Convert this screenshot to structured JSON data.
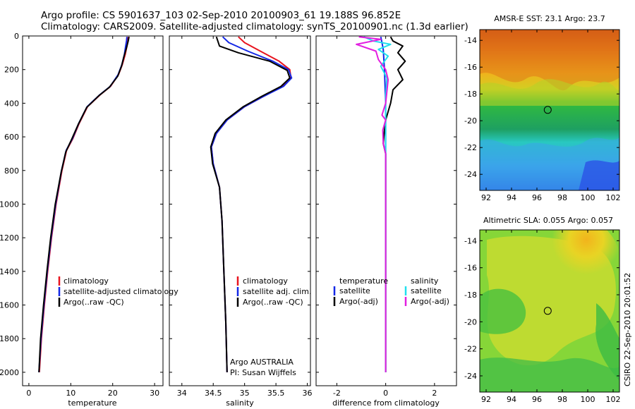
{
  "header": {
    "line1": "Argo profile: CS 5901637_103 02-Sep-2010 20100903_61 19.188S 96.852E",
    "line2": "Climatology: CARS2009. Satellite-adjusted climatology: synTS_20100901.nc (1.3d earlier)"
  },
  "colors": {
    "climatology": "#e8141e",
    "satellite": "#1428e6",
    "argo": "#000000",
    "satellite_salinity": "#20e0ee",
    "argo_salinity": "#e21ee0"
  },
  "chart_data": [
    {
      "type": "line",
      "name": "temperature-profile",
      "xlabel": "temperature",
      "ylabel": "",
      "xlim": [
        -1.5,
        32
      ],
      "ylim": [
        0,
        2080
      ],
      "y_inverted": true,
      "xticks": [
        0,
        10,
        20,
        30
      ],
      "yticks": [
        0,
        200,
        400,
        600,
        800,
        1000,
        1200,
        1400,
        1600,
        1800,
        2000
      ],
      "legend": [
        "climatology",
        "satellite-adjusted climatology",
        "Argo(..raw -QC)"
      ],
      "series": [
        {
          "name": "climatology",
          "color_key": "climatology",
          "points": [
            [
              23.7,
              5
            ],
            [
              23.6,
              30
            ],
            [
              23.4,
              60
            ],
            [
              23.0,
              110
            ],
            [
              22.3,
              170
            ],
            [
              21.4,
              230
            ],
            [
              19.5,
              300
            ],
            [
              17.0,
              350
            ],
            [
              14.0,
              420
            ],
            [
              12.0,
              520
            ],
            [
              10.5,
              610
            ],
            [
              9.0,
              680
            ],
            [
              7.9,
              800
            ],
            [
              6.5,
              1000
            ],
            [
              5.4,
              1200
            ],
            [
              4.5,
              1400
            ],
            [
              3.7,
              1600
            ],
            [
              3.0,
              1800
            ],
            [
              2.5,
              2000
            ]
          ]
        },
        {
          "name": "satellite-adjusted climatology",
          "color_key": "satellite",
          "points": [
            [
              23.4,
              5
            ],
            [
              23.3,
              30
            ],
            [
              23.1,
              60
            ],
            [
              22.8,
              110
            ],
            [
              22.2,
              170
            ],
            [
              21.3,
              230
            ],
            [
              19.4,
              300
            ],
            [
              16.9,
              350
            ],
            [
              13.9,
              420
            ],
            [
              11.9,
              520
            ],
            [
              10.4,
              610
            ],
            [
              8.9,
              680
            ],
            [
              7.8,
              800
            ],
            [
              6.4,
              1000
            ],
            [
              5.3,
              1200
            ],
            [
              4.4,
              1400
            ],
            [
              3.6,
              1600
            ],
            [
              2.9,
              1800
            ],
            [
              2.4,
              2000
            ]
          ]
        },
        {
          "name": "Argo(..raw -QC)",
          "color_key": "argo",
          "points": [
            [
              23.9,
              5
            ],
            [
              23.7,
              30
            ],
            [
              23.3,
              70
            ],
            [
              22.7,
              120
            ],
            [
              22.1,
              180
            ],
            [
              21.2,
              240
            ],
            [
              19.2,
              305
            ],
            [
              16.7,
              355
            ],
            [
              13.8,
              425
            ],
            [
              11.8,
              525
            ],
            [
              10.2,
              615
            ],
            [
              8.8,
              690
            ],
            [
              7.7,
              810
            ],
            [
              6.3,
              1000
            ],
            [
              5.2,
              1200
            ],
            [
              4.3,
              1400
            ],
            [
              3.5,
              1600
            ],
            [
              2.8,
              1800
            ],
            [
              2.4,
              2000
            ]
          ]
        }
      ]
    },
    {
      "type": "line",
      "name": "salinity-profile",
      "xlabel": "salinity",
      "ylabel": "",
      "xlim": [
        33.8,
        36.05
      ],
      "ylim": [
        0,
        2080
      ],
      "y_inverted": true,
      "xticks": [
        34,
        34.5,
        35,
        35.5,
        36
      ],
      "yticks": [
        0,
        200,
        400,
        600,
        800,
        1000,
        1200,
        1400,
        1600,
        1800,
        2000
      ],
      "legend": [
        "climatology",
        "satellite adj. clim.",
        "Argo(..raw -QC)"
      ],
      "annotation": [
        "Argo AUSTRALIA",
        "PI: Susan Wijffels"
      ],
      "series": [
        {
          "name": "climatology",
          "color_key": "climatology",
          "points": [
            [
              34.9,
              5
            ],
            [
              35.0,
              40
            ],
            [
              35.25,
              90
            ],
            [
              35.55,
              150
            ],
            [
              35.72,
              200
            ],
            [
              35.74,
              250
            ],
            [
              35.6,
              300
            ],
            [
              35.3,
              360
            ],
            [
              35.0,
              420
            ],
            [
              34.72,
              500
            ],
            [
              34.55,
              580
            ],
            [
              34.47,
              660
            ],
            [
              34.5,
              760
            ],
            [
              34.6,
              900
            ],
            [
              34.64,
              1100
            ],
            [
              34.67,
              1400
            ],
            [
              34.7,
              1700
            ],
            [
              34.72,
              2000
            ]
          ]
        },
        {
          "name": "satellite adj. clim.",
          "color_key": "satellite",
          "points": [
            [
              34.65,
              5
            ],
            [
              34.75,
              40
            ],
            [
              35.05,
              90
            ],
            [
              35.45,
              150
            ],
            [
              35.7,
              200
            ],
            [
              35.75,
              250
            ],
            [
              35.62,
              300
            ],
            [
              35.3,
              360
            ],
            [
              35.0,
              420
            ],
            [
              34.72,
              500
            ],
            [
              34.55,
              580
            ],
            [
              34.47,
              660
            ],
            [
              34.5,
              760
            ],
            [
              34.6,
              900
            ],
            [
              34.64,
              1100
            ],
            [
              34.67,
              1400
            ],
            [
              34.7,
              1700
            ],
            [
              34.72,
              2000
            ]
          ]
        },
        {
          "name": "Argo(..raw -QC)",
          "color_key": "argo",
          "points": [
            [
              34.55,
              5
            ],
            [
              34.6,
              60
            ],
            [
              34.9,
              100
            ],
            [
              35.4,
              150
            ],
            [
              35.68,
              205
            ],
            [
              35.72,
              250
            ],
            [
              35.58,
              300
            ],
            [
              35.27,
              360
            ],
            [
              34.98,
              420
            ],
            [
              34.7,
              500
            ],
            [
              34.53,
              580
            ],
            [
              34.46,
              660
            ],
            [
              34.49,
              760
            ],
            [
              34.6,
              900
            ],
            [
              34.64,
              1100
            ],
            [
              34.67,
              1400
            ],
            [
              34.7,
              1700
            ],
            [
              34.72,
              2000
            ]
          ]
        }
      ]
    },
    {
      "type": "line",
      "name": "difference-profile",
      "xlabel": "difference from climatology",
      "ylabel": "",
      "xlim": [
        -2.85,
        2.9
      ],
      "ylim": [
        0,
        2080
      ],
      "y_inverted": true,
      "xticks": [
        -2,
        0,
        2
      ],
      "yticks": [
        0,
        200,
        400,
        600,
        800,
        1000,
        1200,
        1400,
        1600,
        1800,
        2000
      ],
      "legend_left": {
        "title": "temperature",
        "items": [
          "satellite",
          "Argo(-adj)"
        ]
      },
      "legend_right": {
        "title": "salinity",
        "items": [
          "satellite",
          "Argo(-adj)"
        ]
      },
      "series": [
        {
          "name": "temperature satellite",
          "color_key": "satellite",
          "points": [
            [
              -0.2,
              5
            ],
            [
              -0.15,
              40
            ],
            [
              -0.1,
              80
            ],
            [
              -0.05,
              200
            ],
            [
              0.0,
              400
            ],
            [
              0.0,
              700
            ],
            [
              0.0,
              1000
            ],
            [
              0.0,
              2000
            ]
          ]
        },
        {
          "name": "temperature Argo(-adj)",
          "color_key": "argo",
          "points": [
            [
              0.2,
              5
            ],
            [
              0.3,
              30
            ],
            [
              0.7,
              60
            ],
            [
              0.5,
              100
            ],
            [
              0.8,
              150
            ],
            [
              0.5,
              200
            ],
            [
              0.7,
              260
            ],
            [
              0.3,
              320
            ],
            [
              0.2,
              400
            ],
            [
              0.0,
              500
            ],
            [
              -0.05,
              560
            ],
            [
              -0.1,
              640
            ],
            [
              0.0,
              700
            ],
            [
              0.0,
              1000
            ],
            [
              0.0,
              2000
            ]
          ]
        },
        {
          "name": "salinity satellite",
          "color_key": "satellite_salinity",
          "points": [
            [
              -0.9,
              5
            ],
            [
              -0.5,
              30
            ],
            [
              0.2,
              50
            ],
            [
              -0.3,
              80
            ],
            [
              0.1,
              120
            ],
            [
              -0.2,
              180
            ],
            [
              0.05,
              250
            ],
            [
              0.0,
              350
            ],
            [
              0.0,
              600
            ],
            [
              0.0,
              2000
            ]
          ]
        },
        {
          "name": "salinity Argo(-adj)",
          "color_key": "argo_salinity",
          "points": [
            [
              -1.1,
              5
            ],
            [
              -0.2,
              20
            ],
            [
              -1.2,
              50
            ],
            [
              -0.4,
              90
            ],
            [
              -0.3,
              140
            ],
            [
              0.0,
              200
            ],
            [
              0.1,
              260
            ],
            [
              0.0,
              400
            ],
            [
              -0.15,
              470
            ],
            [
              0.0,
              500
            ],
            [
              -0.12,
              560
            ],
            [
              -0.1,
              640
            ],
            [
              0.0,
              700
            ],
            [
              0.0,
              1000
            ],
            [
              0.0,
              2000
            ]
          ]
        }
      ]
    },
    {
      "type": "heatmap",
      "name": "sst-map",
      "title": "AMSR-E SST: 23.1 Argo: 23.7",
      "xlim": [
        91.5,
        102.5
      ],
      "ylim": [
        -25.2,
        -13.2
      ],
      "xticks": [
        92,
        94,
        96,
        98,
        100,
        102
      ],
      "yticks": [
        -14,
        -16,
        -18,
        -20,
        -22,
        -24
      ],
      "marker": {
        "lon": 96.852,
        "lat": -19.188
      }
    },
    {
      "type": "heatmap",
      "name": "sla-map",
      "title": "Altimetric SLA: 0.055 Argo: 0.057",
      "xlim": [
        91.5,
        102.5
      ],
      "ylim": [
        -25.2,
        -13.2
      ],
      "xticks": [
        92,
        94,
        96,
        98,
        100,
        102
      ],
      "yticks": [
        -14,
        -16,
        -18,
        -20,
        -22,
        -24
      ],
      "marker": {
        "lon": 96.852,
        "lat": -19.188
      }
    }
  ],
  "footer": {
    "stamp": "CSIRO 22-Sep-2010 20:01:52"
  }
}
